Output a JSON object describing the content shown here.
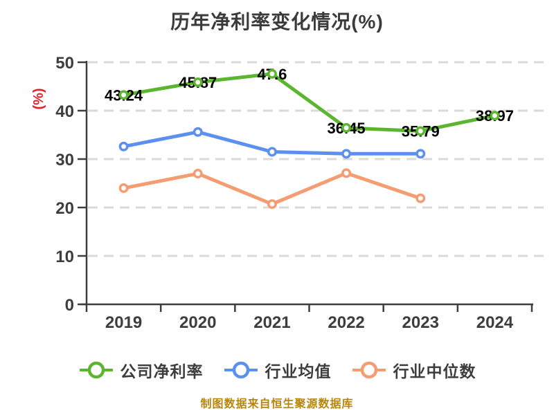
{
  "title": "历年净利率变化情况(%)",
  "footer_note": "制图数据来自恒生聚源数据库",
  "colors": {
    "company_line": "#5cb52f",
    "industry_mean_line": "#5b8ff0",
    "industry_median_line": "#f59c72",
    "axis": "#3d3d3d",
    "grid": "#d9d9d9",
    "y_unit_label": "#e62129",
    "value_label": "#000000",
    "title_text": "#3b3b3b",
    "footer_text": "#b8860b",
    "marker_fill": "#ffffff",
    "background": "#ffffff"
  },
  "chart_data": {
    "type": "line",
    "title": "历年净利率变化情况(%)",
    "xlabel": "",
    "ylabel": "(%)",
    "categories": [
      "2019",
      "2020",
      "2021",
      "2022",
      "2023",
      "2024"
    ],
    "ylim": [
      0,
      50
    ],
    "yticks": [
      0,
      10,
      20,
      30,
      40,
      50
    ],
    "grid": "horizontal-dashed",
    "legend_position": "bottom",
    "series": [
      {
        "name": "公司净利率",
        "color": "#5cb52f",
        "values": [
          43.24,
          45.87,
          47.6,
          36.45,
          35.79,
          38.97
        ],
        "point_labels": [
          "43.24",
          "45.87",
          "47.6",
          "36.45",
          "35.79",
          "38.97"
        ]
      },
      {
        "name": "行业均值",
        "color": "#5b8ff0",
        "values": [
          32.6,
          35.6,
          31.5,
          31.1,
          31.1,
          null
        ],
        "point_labels": null
      },
      {
        "name": "行业中位数",
        "color": "#f59c72",
        "values": [
          24.0,
          27.0,
          20.7,
          27.1,
          21.9,
          null
        ],
        "point_labels": null
      }
    ]
  }
}
